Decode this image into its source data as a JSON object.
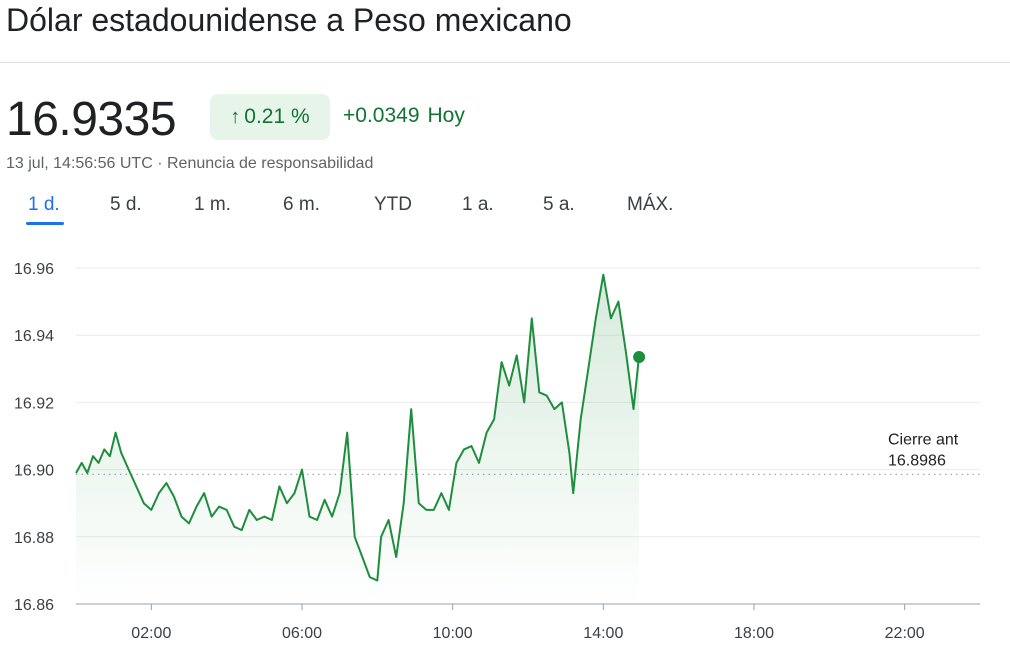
{
  "header": {
    "title": "Dólar estadounidense a Peso mexicano"
  },
  "quote": {
    "price": "16.9335",
    "percent_change": "0.21 %",
    "absolute_change": "+0.0349",
    "period_label": "Hoy",
    "timestamp": "13 jul, 14:56:56 UTC",
    "separator": "·",
    "disclaimer": "Renuncia de responsabilidad",
    "positive_color": "#137333",
    "positive_bg": "#e6f4ea"
  },
  "ranges": {
    "items": [
      "1 d.",
      "5 d.",
      "1 m.",
      "6 m.",
      "YTD",
      "1 a.",
      "5 a.",
      "MÁX."
    ],
    "selected": "1 d.",
    "accent": "#1a73e8"
  },
  "chart_data": {
    "type": "area",
    "line_color": "#1e8e3e",
    "x_unit": "hours (UTC)",
    "xlim": [
      0,
      24
    ],
    "ylim": [
      16.86,
      16.96
    ],
    "y_ticks": [
      "16.96",
      "16.94",
      "16.92",
      "16.90",
      "16.88",
      "16.86"
    ],
    "x_ticks": [
      {
        "value": 2,
        "label": "02:00"
      },
      {
        "value": 6,
        "label": "06:00"
      },
      {
        "value": 10,
        "label": "10:00"
      },
      {
        "value": 14,
        "label": "14:00"
      },
      {
        "value": 18,
        "label": "18:00"
      },
      {
        "value": 22,
        "label": "22:00"
      }
    ],
    "grid": true,
    "reference_line": {
      "value": 16.8986,
      "label": "Cierre ant",
      "value_label": "16.8986"
    },
    "series": [
      {
        "x": [
          0.0,
          0.15,
          0.3,
          0.45,
          0.6,
          0.75,
          0.9,
          1.05,
          1.2,
          1.4,
          1.6,
          1.8,
          2.0,
          2.2,
          2.4,
          2.6,
          2.8,
          3.0,
          3.2,
          3.4,
          3.6,
          3.8,
          4.0,
          4.2,
          4.4,
          4.6,
          4.8,
          5.0,
          5.2,
          5.4,
          5.6,
          5.8,
          6.0,
          6.2,
          6.4,
          6.6,
          6.8,
          7.0,
          7.2,
          7.4,
          7.6,
          7.8,
          8.0,
          8.1,
          8.3,
          8.5,
          8.7,
          8.9,
          9.1,
          9.3,
          9.5,
          9.7,
          9.9,
          10.1,
          10.3,
          10.5,
          10.7,
          10.9,
          11.1,
          11.3,
          11.5,
          11.7,
          11.9,
          12.1,
          12.3,
          12.5,
          12.7,
          12.9,
          13.1,
          13.2,
          13.4,
          13.6,
          13.8,
          14.0,
          14.2,
          14.4,
          14.6,
          14.8,
          14.95
        ],
        "y": [
          16.899,
          16.902,
          16.899,
          16.904,
          16.902,
          16.906,
          16.904,
          16.911,
          16.905,
          16.9,
          16.895,
          16.89,
          16.888,
          16.893,
          16.896,
          16.892,
          16.886,
          16.884,
          16.889,
          16.893,
          16.886,
          16.889,
          16.888,
          16.883,
          16.882,
          16.888,
          16.885,
          16.886,
          16.885,
          16.895,
          16.89,
          16.893,
          16.9,
          16.886,
          16.885,
          16.891,
          16.886,
          16.893,
          16.911,
          16.88,
          16.874,
          16.868,
          16.867,
          16.88,
          16.885,
          16.874,
          16.89,
          16.918,
          16.89,
          16.888,
          16.888,
          16.893,
          16.888,
          16.902,
          16.906,
          16.907,
          16.902,
          16.911,
          16.915,
          16.932,
          16.925,
          16.934,
          16.92,
          16.945,
          16.923,
          16.922,
          16.918,
          16.92,
          16.905,
          16.893,
          16.915,
          16.93,
          16.945,
          16.958,
          16.945,
          16.95,
          16.935,
          16.918,
          16.934
        ]
      }
    ],
    "last_point": {
      "x": 14.95,
      "y": 16.9335
    }
  }
}
